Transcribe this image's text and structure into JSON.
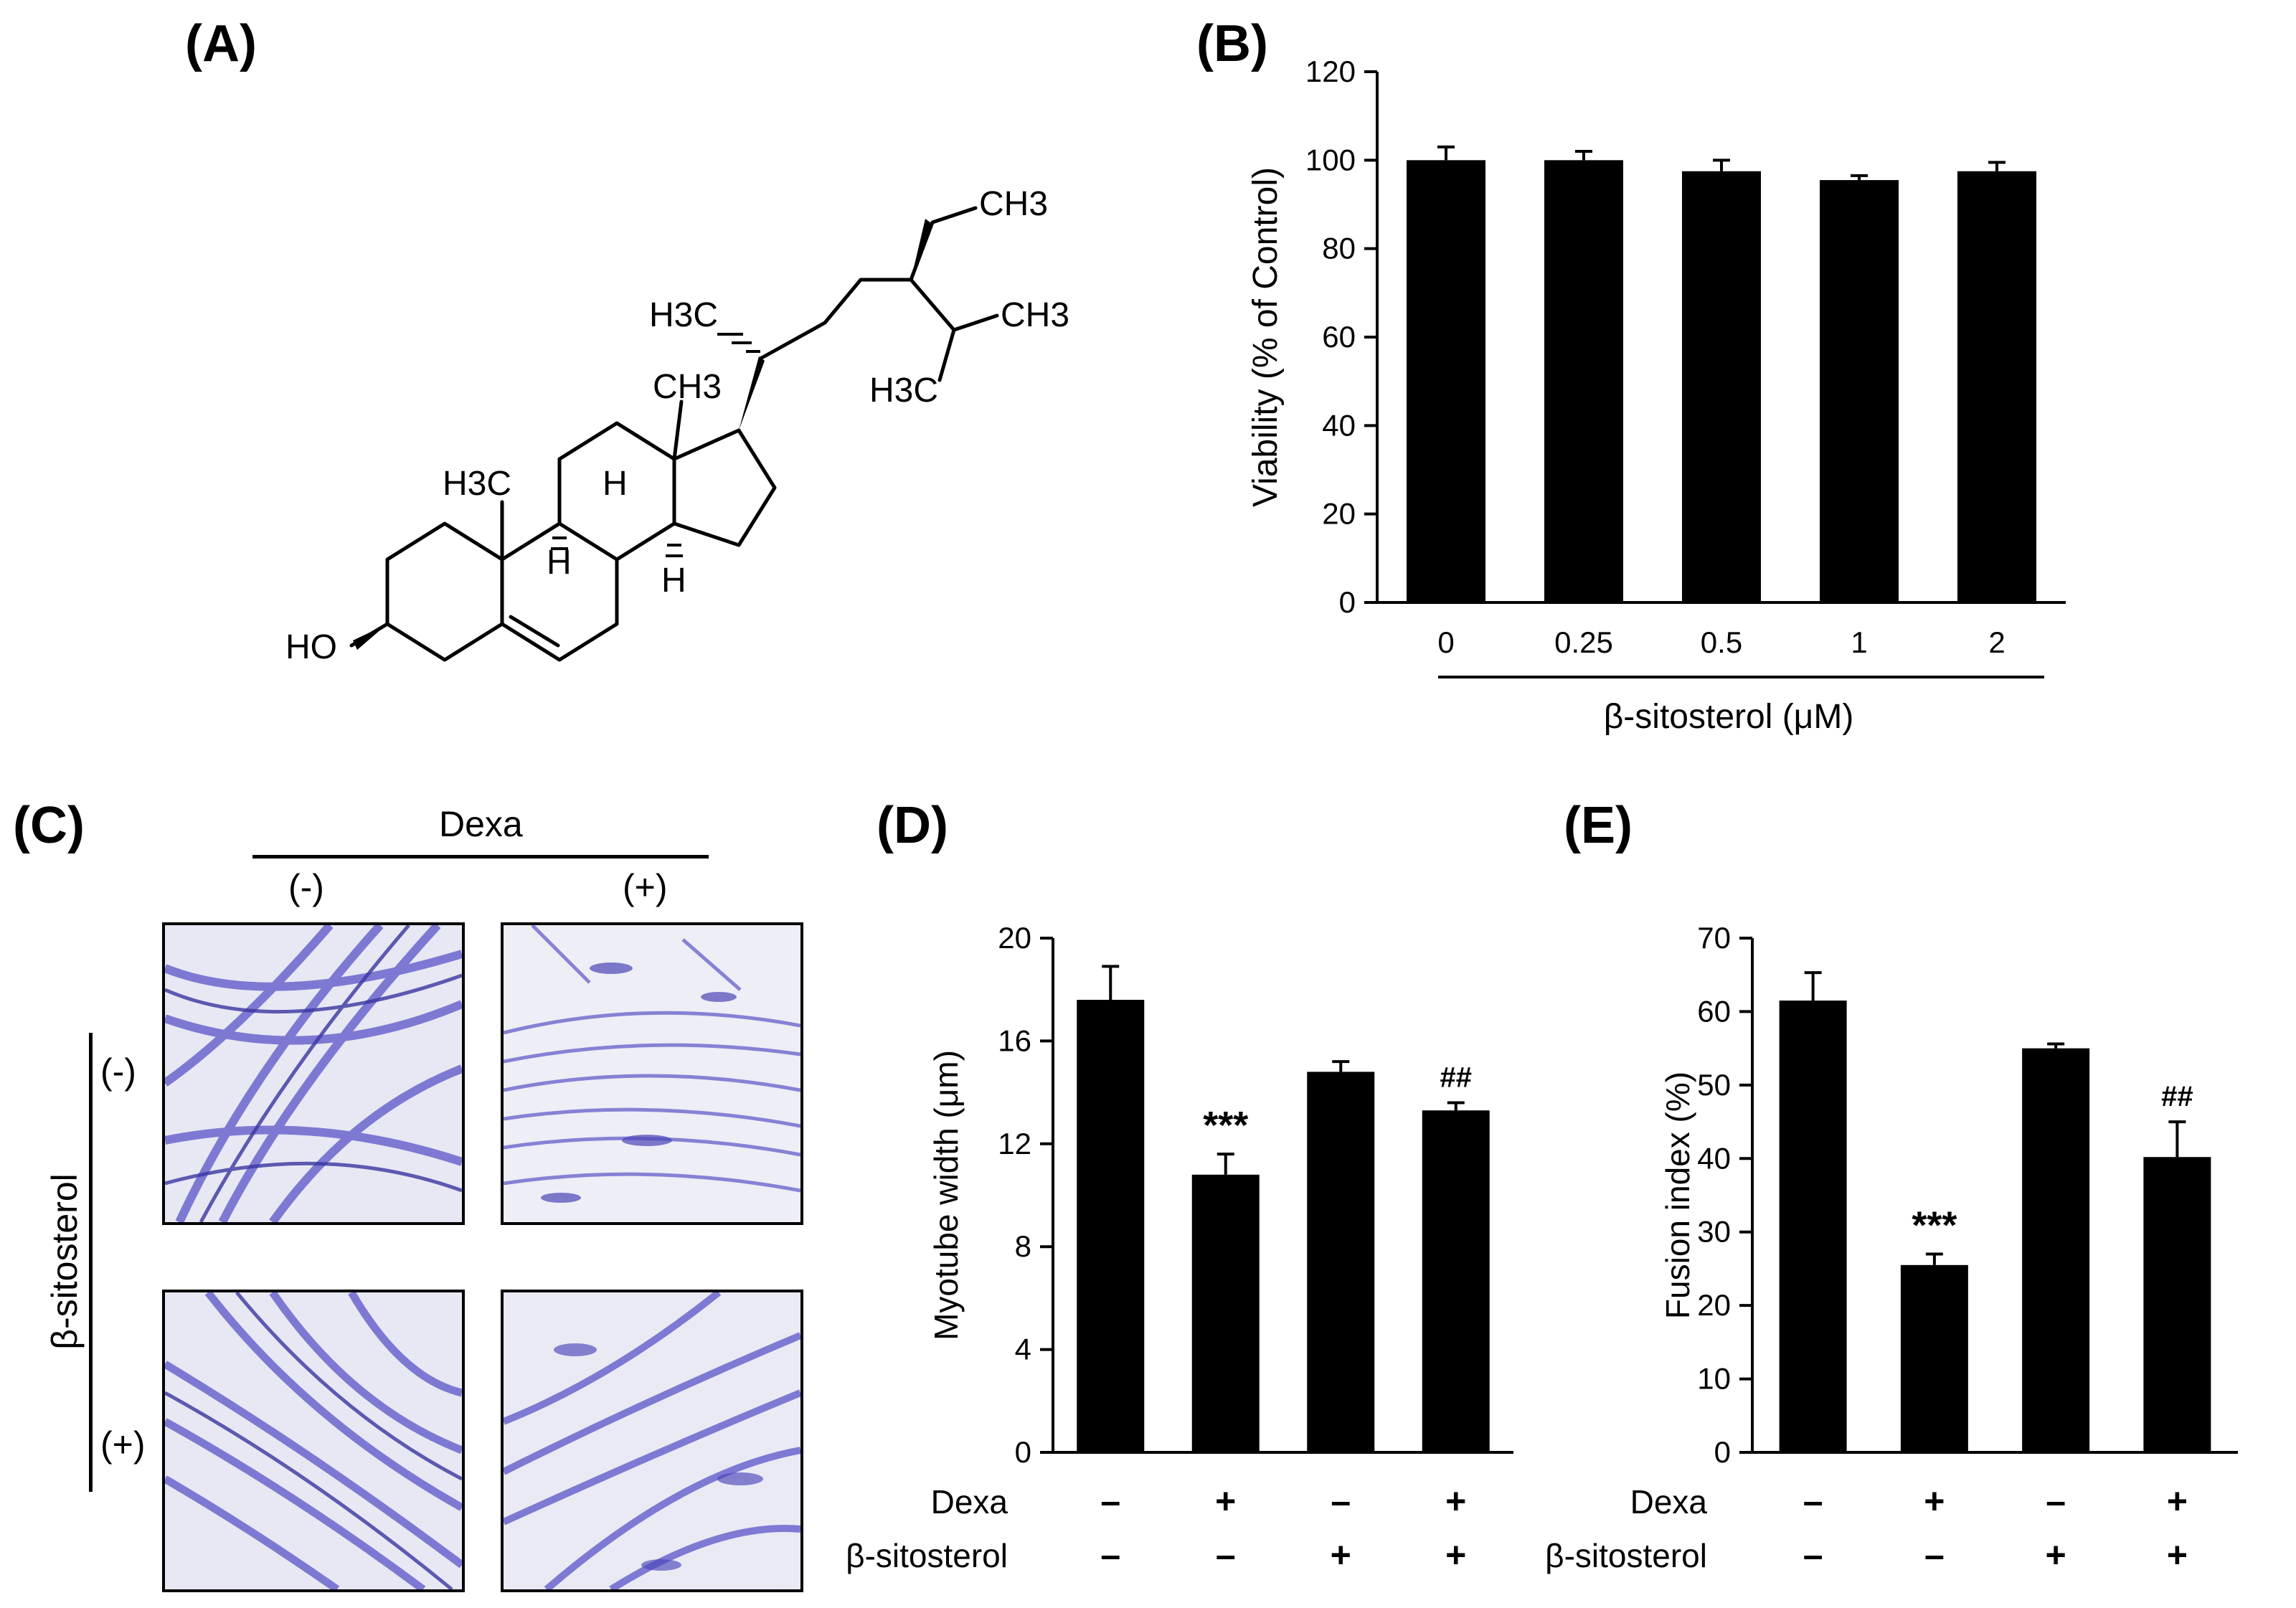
{
  "panels": {
    "A": "(A)",
    "B": "(B)",
    "C": "(C)",
    "D": "(D)",
    "E": "(E)"
  },
  "structure": {
    "name": "β-sitosterol chemical structure",
    "labels": {
      "ch3_top": "CH3",
      "h3c_side": "H3C",
      "ch3_iso": "CH3",
      "h3c_iso": "H3C",
      "ch3_c13": "CH3",
      "h3c_c10": "H3C",
      "h_c8": "H",
      "h_c9": "H",
      "h_c14": "H",
      "ho": "HO"
    }
  },
  "panel_c": {
    "dexa_label": "Dexa",
    "dexa_minus": "(-)",
    "dexa_plus": "(+)",
    "sito_label": "β-sitosterol",
    "sito_minus": "(-)",
    "sito_plus": "(+)",
    "stain_color": "#5a55c8"
  },
  "chart_data": [
    {
      "id": "B",
      "type": "bar",
      "categories": [
        "0",
        "0.25",
        "0.5",
        "1",
        "2"
      ],
      "values": [
        100,
        100,
        97.5,
        95.5,
        97.5
      ],
      "errors": [
        3,
        2,
        2.5,
        1,
        2
      ],
      "ylabel": "Viability (% of Control)",
      "xlabel": "β-sitosterol (μM)",
      "ylim": [
        0,
        120
      ],
      "yticks": [
        "0",
        "20",
        "40",
        "60",
        "80",
        "100",
        "120"
      ],
      "bar_color": "#000000"
    },
    {
      "id": "D",
      "type": "bar",
      "values": [
        17.6,
        10.8,
        14.8,
        13.3
      ],
      "errors": [
        1.3,
        0.8,
        0.4,
        0.3
      ],
      "annotations": [
        "",
        "***",
        "",
        "##"
      ],
      "ylabel": "Myotube width (μm)",
      "ylim": [
        0,
        20
      ],
      "yticks": [
        "0",
        "4",
        "8",
        "12",
        "16",
        "20"
      ],
      "rows": [
        {
          "label": "Dexa",
          "signs": [
            "–",
            "+",
            "–",
            "+"
          ]
        },
        {
          "label": "β-sitosterol",
          "signs": [
            "–",
            "–",
            "+",
            "+"
          ]
        }
      ],
      "bar_color": "#000000"
    },
    {
      "id": "E",
      "type": "bar",
      "values": [
        61.5,
        25.5,
        55,
        40.2
      ],
      "errors": [
        3.8,
        1.5,
        0.6,
        4.8
      ],
      "annotations": [
        "",
        "***",
        "",
        "##"
      ],
      "ylabel": "Fusion index (%)",
      "ylim": [
        0,
        70
      ],
      "yticks": [
        "0",
        "10",
        "20",
        "30",
        "40",
        "50",
        "60",
        "70"
      ],
      "rows": [
        {
          "label": "Dexa",
          "signs": [
            "–",
            "+",
            "–",
            "+"
          ]
        },
        {
          "label": "β-sitosterol",
          "signs": [
            "–",
            "–",
            "+",
            "+"
          ]
        }
      ],
      "bar_color": "#000000"
    }
  ]
}
